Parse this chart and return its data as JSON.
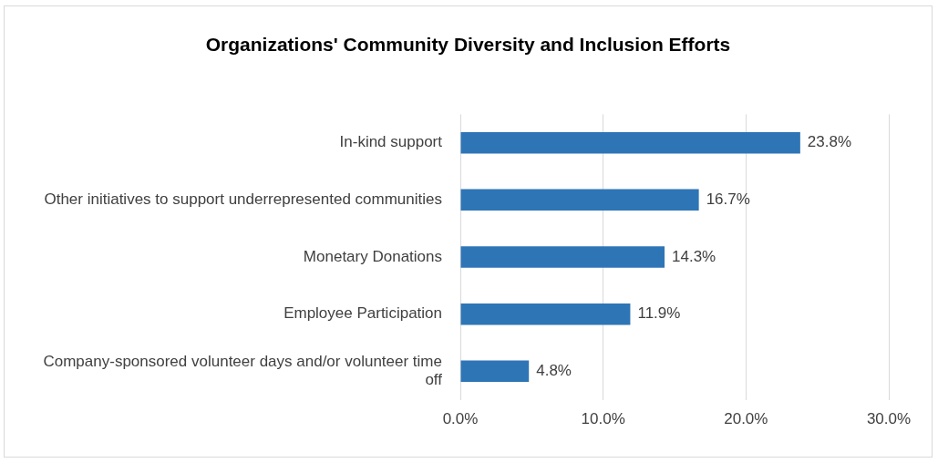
{
  "chart_data": {
    "type": "bar",
    "orientation": "horizontal",
    "title": "Organizations' Community Diversity and Inclusion Efforts",
    "categories": [
      "In-kind support",
      "Other initiatives to support underrepresented communities",
      "Monetary Donations",
      "Employee Participation",
      "Company-sponsored volunteer days and/or volunteer time off"
    ],
    "values": [
      23.8,
      16.7,
      14.3,
      11.9,
      4.8
    ],
    "value_labels": [
      "23.8%",
      "16.7%",
      "14.3%",
      "11.9%",
      "4.8%"
    ],
    "color": "#2e75b6",
    "xlim": [
      0,
      30
    ],
    "xticks": [
      {
        "value": 0,
        "label": "0.0%"
      },
      {
        "value": 10,
        "label": "10.0%"
      },
      {
        "value": 20,
        "label": "20.0%"
      },
      {
        "value": 30,
        "label": "30.0%"
      }
    ],
    "grid": "x",
    "legend": false
  }
}
